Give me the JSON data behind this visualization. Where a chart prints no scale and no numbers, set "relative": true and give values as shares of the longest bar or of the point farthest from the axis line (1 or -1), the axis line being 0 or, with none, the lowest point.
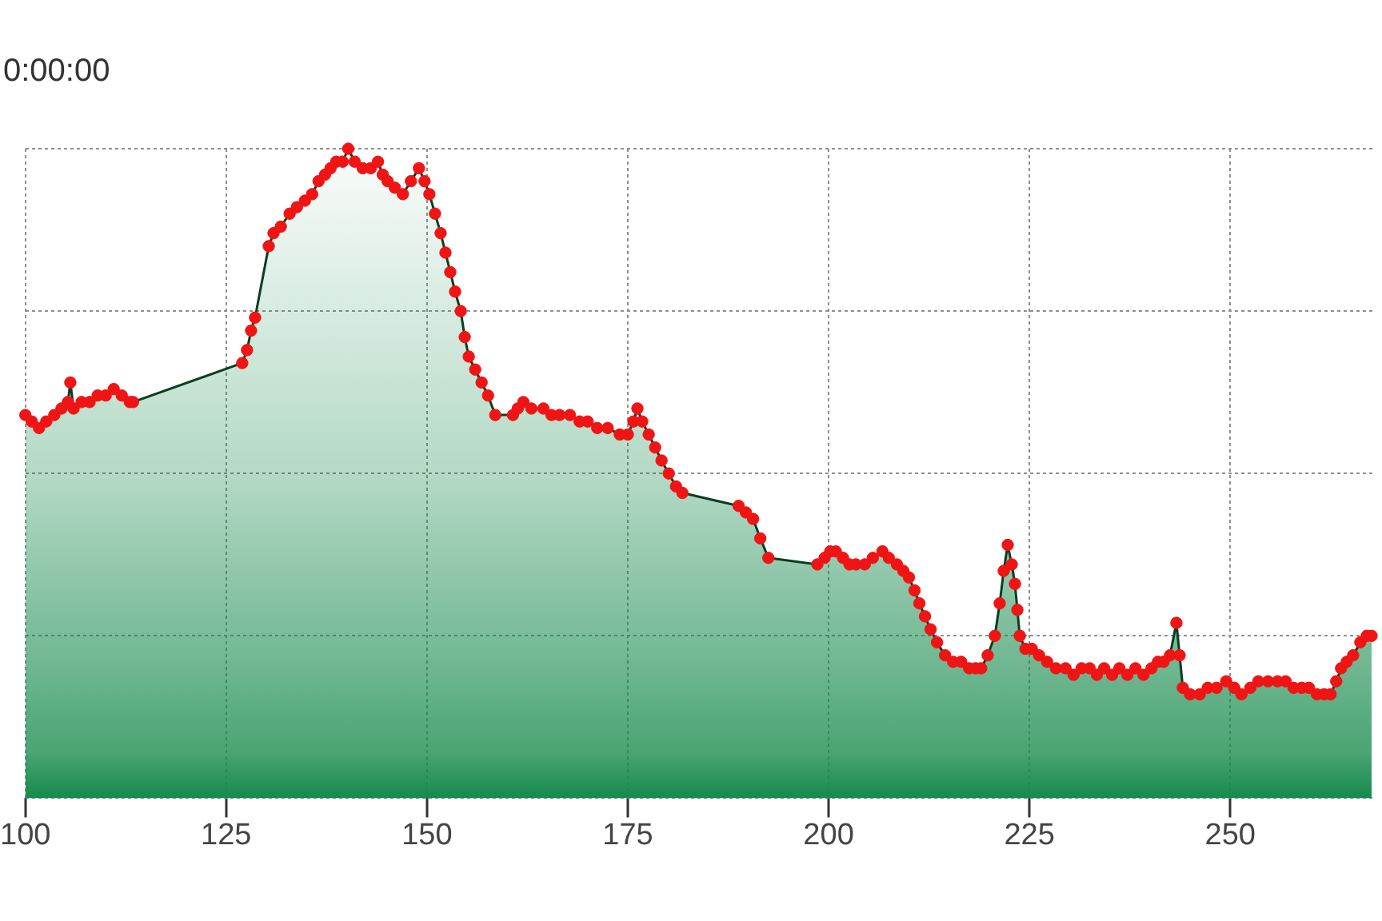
{
  "chart_data": {
    "type": "area",
    "title": "0:00:00",
    "relative": true,
    "grid": true,
    "xlim": [
      100,
      268
    ],
    "xticks": [
      100,
      125,
      150,
      175,
      200,
      225,
      250
    ],
    "x": [
      100.0,
      100.8,
      101.7,
      102.6,
      103.6,
      104.5,
      105.3,
      105.6,
      106.0,
      107.0,
      108.0,
      109.0,
      110.0,
      111.0,
      112.0,
      113.0,
      113.4,
      127.0,
      127.6,
      128.1,
      128.6,
      130.3,
      130.9,
      131.8,
      132.9,
      133.8,
      134.8,
      135.7,
      136.5,
      137.3,
      138.0,
      138.7,
      139.5,
      140.2,
      141.0,
      142.0,
      143.0,
      143.9,
      144.5,
      145.1,
      146.0,
      147.0,
      148.0,
      149.0,
      149.7,
      150.3,
      151.0,
      151.7,
      152.3,
      152.9,
      153.5,
      154.2,
      154.7,
      155.2,
      156.0,
      156.8,
      157.6,
      158.5,
      160.7,
      161.3,
      162.0,
      163.0,
      164.5,
      165.5,
      166.5,
      167.8,
      169.0,
      170.0,
      171.2,
      172.5,
      174.0,
      175.0,
      175.7,
      176.2,
      176.8,
      177.6,
      178.4,
      179.2,
      180.1,
      181.0,
      181.8,
      188.8,
      189.7,
      190.6,
      191.5,
      192.5,
      198.6,
      199.5,
      200.2,
      200.9,
      201.8,
      202.6,
      203.4,
      204.5,
      205.5,
      206.7,
      207.5,
      208.5,
      209.3,
      210.0,
      210.7,
      211.3,
      212.0,
      212.7,
      213.5,
      214.5,
      215.5,
      216.5,
      217.5,
      218.3,
      219.0,
      219.8,
      220.7,
      221.3,
      221.8,
      222.3,
      222.8,
      223.2,
      223.5,
      223.8,
      224.5,
      225.3,
      226.2,
      227.2,
      228.3,
      229.5,
      230.5,
      231.5,
      232.5,
      233.4,
      234.3,
      235.3,
      236.2,
      237.2,
      238.2,
      239.2,
      240.2,
      241.0,
      241.7,
      242.5,
      243.3,
      243.7,
      244.1,
      245.0,
      246.2,
      247.2,
      248.3,
      249.5,
      250.5,
      251.4,
      252.5,
      253.5,
      254.7,
      255.9,
      256.9,
      257.9,
      258.9,
      259.8,
      260.8,
      261.7,
      262.5,
      263.2,
      263.8,
      264.5,
      265.3,
      266.2,
      267.0,
      267.6
    ],
    "series": [
      {
        "color": "#168a4c",
        "values": [
          0.59,
          0.58,
          0.57,
          0.58,
          0.59,
          0.6,
          0.61,
          0.64,
          0.6,
          0.61,
          0.61,
          0.62,
          0.62,
          0.63,
          0.62,
          0.61,
          0.61,
          0.67,
          0.69,
          0.72,
          0.74,
          0.85,
          0.87,
          0.88,
          0.9,
          0.91,
          0.92,
          0.93,
          0.95,
          0.96,
          0.97,
          0.98,
          0.98,
          1.0,
          0.98,
          0.97,
          0.97,
          0.98,
          0.96,
          0.95,
          0.94,
          0.93,
          0.95,
          0.97,
          0.95,
          0.93,
          0.9,
          0.87,
          0.84,
          0.81,
          0.78,
          0.75,
          0.71,
          0.68,
          0.66,
          0.64,
          0.62,
          0.59,
          0.59,
          0.6,
          0.61,
          0.6,
          0.6,
          0.59,
          0.59,
          0.59,
          0.58,
          0.58,
          0.57,
          0.57,
          0.56,
          0.56,
          0.58,
          0.6,
          0.58,
          0.56,
          0.54,
          0.52,
          0.5,
          0.48,
          0.47,
          0.45,
          0.44,
          0.43,
          0.4,
          0.37,
          0.36,
          0.37,
          0.38,
          0.38,
          0.37,
          0.36,
          0.36,
          0.36,
          0.37,
          0.38,
          0.37,
          0.36,
          0.35,
          0.34,
          0.32,
          0.3,
          0.28,
          0.26,
          0.24,
          0.22,
          0.21,
          0.21,
          0.2,
          0.2,
          0.2,
          0.22,
          0.25,
          0.3,
          0.35,
          0.39,
          0.36,
          0.33,
          0.29,
          0.25,
          0.23,
          0.23,
          0.22,
          0.21,
          0.2,
          0.2,
          0.19,
          0.2,
          0.2,
          0.19,
          0.2,
          0.19,
          0.2,
          0.19,
          0.2,
          0.19,
          0.2,
          0.21,
          0.21,
          0.22,
          0.27,
          0.22,
          0.17,
          0.16,
          0.16,
          0.17,
          0.17,
          0.18,
          0.17,
          0.16,
          0.17,
          0.18,
          0.18,
          0.18,
          0.18,
          0.17,
          0.17,
          0.17,
          0.16,
          0.16,
          0.16,
          0.18,
          0.2,
          0.21,
          0.22,
          0.24,
          0.25,
          0.25
        ]
      },
      {
        "type": "scatter",
        "color": "#f01414",
        "marker": "circle",
        "values": [
          0.59,
          0.58,
          0.57,
          0.58,
          0.59,
          0.6,
          0.61,
          0.64,
          0.6,
          0.61,
          0.61,
          0.62,
          0.62,
          0.63,
          0.62,
          0.61,
          0.61,
          0.67,
          0.69,
          0.72,
          0.74,
          0.85,
          0.87,
          0.88,
          0.9,
          0.91,
          0.92,
          0.93,
          0.95,
          0.96,
          0.97,
          0.98,
          0.98,
          1.0,
          0.98,
          0.97,
          0.97,
          0.98,
          0.96,
          0.95,
          0.94,
          0.93,
          0.95,
          0.97,
          0.95,
          0.93,
          0.9,
          0.87,
          0.84,
          0.81,
          0.78,
          0.75,
          0.71,
          0.68,
          0.66,
          0.64,
          0.62,
          0.59,
          0.59,
          0.6,
          0.61,
          0.6,
          0.6,
          0.59,
          0.59,
          0.59,
          0.58,
          0.58,
          0.57,
          0.57,
          0.56,
          0.56,
          0.58,
          0.6,
          0.58,
          0.56,
          0.54,
          0.52,
          0.5,
          0.48,
          0.47,
          0.45,
          0.44,
          0.43,
          0.4,
          0.37,
          0.36,
          0.37,
          0.38,
          0.38,
          0.37,
          0.36,
          0.36,
          0.36,
          0.37,
          0.38,
          0.37,
          0.36,
          0.35,
          0.34,
          0.32,
          0.3,
          0.28,
          0.26,
          0.24,
          0.22,
          0.21,
          0.21,
          0.2,
          0.2,
          0.2,
          0.22,
          0.25,
          0.3,
          0.35,
          0.39,
          0.36,
          0.33,
          0.29,
          0.25,
          0.23,
          0.23,
          0.22,
          0.21,
          0.2,
          0.2,
          0.19,
          0.2,
          0.2,
          0.19,
          0.2,
          0.19,
          0.2,
          0.19,
          0.2,
          0.19,
          0.2,
          0.21,
          0.21,
          0.22,
          0.27,
          0.22,
          0.17,
          0.16,
          0.16,
          0.17,
          0.17,
          0.18,
          0.17,
          0.16,
          0.17,
          0.18,
          0.18,
          0.18,
          0.18,
          0.17,
          0.17,
          0.17,
          0.16,
          0.16,
          0.16,
          0.18,
          0.2,
          0.21,
          0.22,
          0.24,
          0.25,
          0.25
        ]
      }
    ]
  }
}
